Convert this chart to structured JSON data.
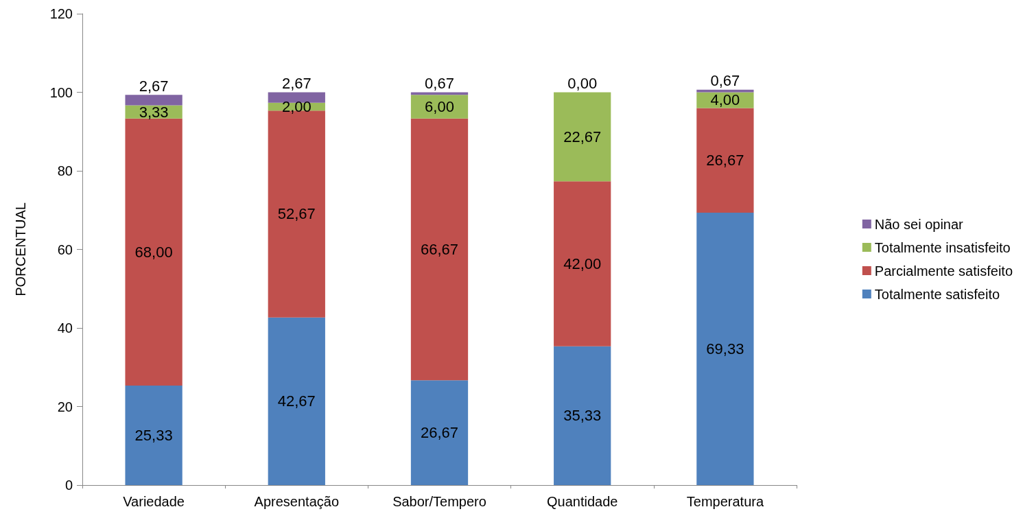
{
  "chart_data": {
    "type": "bar",
    "stacked": true,
    "ylabel": "PORCENTUAL",
    "categories": [
      "Variedade",
      "Apresentação",
      "Sabor/Tempero",
      "Quantidade",
      "Temperatura"
    ],
    "ylim": [
      0,
      120
    ],
    "yticks": [
      0,
      20,
      40,
      60,
      80,
      100,
      120
    ],
    "legend": "right",
    "series": [
      {
        "name": "Totalmente satisfeito",
        "color": "#4f81bd",
        "values": [
          25.33,
          42.67,
          26.67,
          35.33,
          69.33
        ],
        "value_labels": [
          "25,33",
          "42,67",
          "26,67",
          "35,33",
          "69,33"
        ]
      },
      {
        "name": "Parcialmente satisfeito",
        "color": "#c0504d",
        "values": [
          68.0,
          52.67,
          66.67,
          42.0,
          26.67
        ],
        "value_labels": [
          "68,00",
          "52,67",
          "66,67",
          "42,00",
          "26,67"
        ]
      },
      {
        "name": "Totalmente insatisfeito",
        "color": "#9bbb59",
        "values": [
          3.33,
          2.0,
          6.0,
          22.67,
          4.0
        ],
        "value_labels": [
          "3,33",
          "2,00",
          "6,00",
          "22,67",
          "4,00"
        ]
      },
      {
        "name": "Não sei opinar",
        "color": "#8064a2",
        "values": [
          2.67,
          2.67,
          0.67,
          0.0,
          0.67
        ],
        "value_labels": [
          "2,67",
          "2,67",
          "0,67",
          "0,00",
          "0,67"
        ]
      }
    ]
  }
}
